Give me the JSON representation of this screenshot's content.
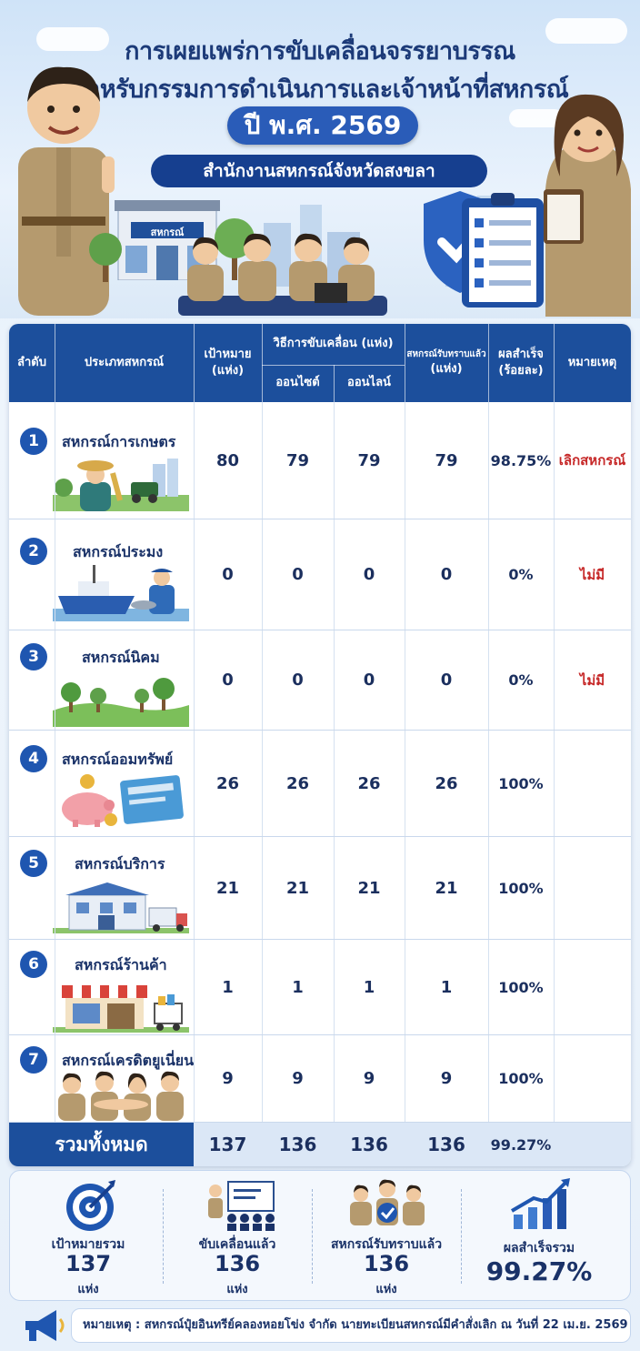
{
  "header": {
    "title_line1": "การเผยแพร่การขับเคลื่อนจรรยาบรรณ",
    "title_line2": "สำหรับกรรมการดำเนินการและเจ้าหน้าที่สหกรณ์",
    "year": "ปี พ.ศ. 2569",
    "office": "สำนักงานสหกรณ์จังหวัดสงขลา",
    "building_sign": "สหกรณ์"
  },
  "table": {
    "headers": {
      "order": "ลำดับ",
      "type": "ประเภทสหกรณ์",
      "target_line1": "เป้าหมาย",
      "target_line2": "(แห่ง)",
      "method": "วิธีการขับเคลื่อน (แห่ง)",
      "onsite": "ออนไซต์",
      "online": "ออนไลน์",
      "acknowledged_line1": "สหกรณ์รับทราบแล้ว",
      "acknowledged_line2": "(แห่ง)",
      "result_line1": "ผลสำเร็จ",
      "result_line2": "(ร้อยละ)",
      "remark": "หมายเหตุ"
    },
    "rows": [
      {
        "no": "1",
        "type": "สหกรณ์การเกษตร",
        "target": "80",
        "onsite": "79",
        "online": "79",
        "acknowledged": "79",
        "result": "98.75%",
        "remark": "เลิกสหกรณ์"
      },
      {
        "no": "2",
        "type": "สหกรณ์ประมง",
        "target": "0",
        "onsite": "0",
        "online": "0",
        "acknowledged": "0",
        "result": "0%",
        "remark": "ไม่มี"
      },
      {
        "no": "3",
        "type": "สหกรณ์นิคม",
        "target": "0",
        "onsite": "0",
        "online": "0",
        "acknowledged": "0",
        "result": "0%",
        "remark": "ไม่มี"
      },
      {
        "no": "4",
        "type": "สหกรณ์ออมทรัพย์",
        "target": "26",
        "onsite": "26",
        "online": "26",
        "acknowledged": "26",
        "result": "100%",
        "remark": ""
      },
      {
        "no": "5",
        "type": "สหกรณ์บริการ",
        "target": "21",
        "onsite": "21",
        "online": "21",
        "acknowledged": "21",
        "result": "100%",
        "remark": ""
      },
      {
        "no": "6",
        "type": "สหกรณ์ร้านค้า",
        "target": "1",
        "onsite": "1",
        "online": "1",
        "acknowledged": "1",
        "result": "100%",
        "remark": ""
      },
      {
        "no": "7",
        "type": "สหกรณ์เครดิตยูเนี่ยน",
        "target": "9",
        "onsite": "9",
        "online": "9",
        "acknowledged": "9",
        "result": "100%",
        "remark": ""
      }
    ],
    "total": {
      "label": "รวมทั้งหมด",
      "target": "137",
      "onsite": "136",
      "online": "136",
      "acknowledged": "136",
      "result": "99.27%"
    }
  },
  "summary": [
    {
      "label": "เป้าหมายรวม",
      "value": "137",
      "unit": "แห่ง",
      "icon": "target-icon"
    },
    {
      "label": "ขับเคลื่อนแล้ว",
      "value": "136",
      "unit": "แห่ง",
      "icon": "presentation-icon"
    },
    {
      "label": "สหกรณ์รับทราบแล้ว",
      "value": "136",
      "unit": "แห่ง",
      "icon": "team-check-icon"
    },
    {
      "label": "ผลสำเร็จรวม",
      "value": "99.27%",
      "unit": "",
      "icon": "growth-chart-icon"
    }
  ],
  "note": {
    "text": "หมายเหตุ : สหกรณ์ปุ๋ยอินทรีย์คลองหอยโข่ง จำกัด นายทะเบียนสหกรณ์มีคำสั่งเลิก ณ วันที่ 22 เม.ย. 2569",
    "icon": "megaphone-icon"
  },
  "colors": {
    "primary": "#1c4f9c",
    "badge": "#1f56b0",
    "remark_red": "#c62828",
    "text": "#1a3268"
  }
}
